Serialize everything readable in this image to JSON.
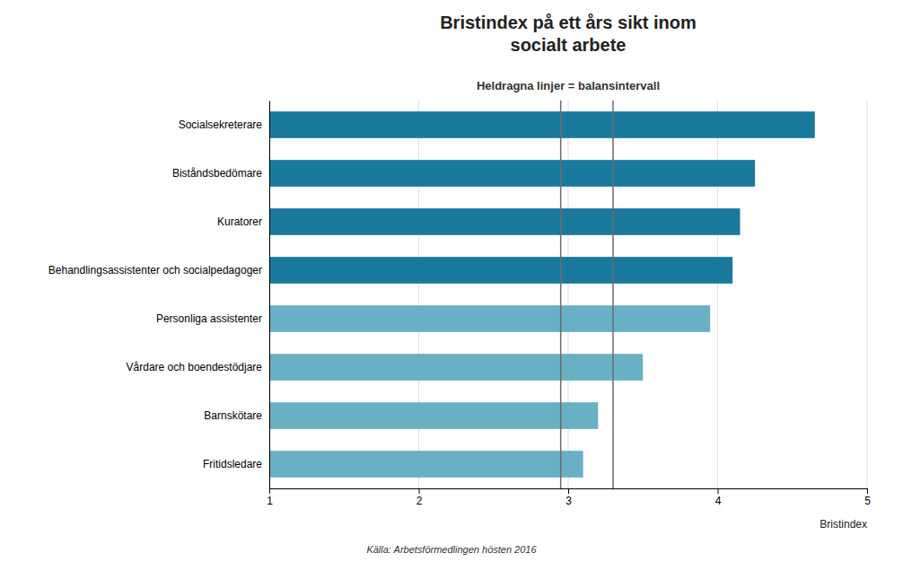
{
  "chart_data": {
    "type": "bar",
    "orientation": "horizontal",
    "title": "Bristindex på ett års sikt inom\nsocialt arbete",
    "subtitle": "Heldragna linjer = balansintervall",
    "xlabel": "Bristindex",
    "annotations": [
      "Källa: Arbetsförmedlingen hösten 2016"
    ],
    "categories": [
      "Fritidsledare",
      "Barnskötare",
      "Vårdare och boendestödjare",
      "Personliga assistenter",
      "Behandlingsassistenter och socialpedagoger",
      "Kuratorer",
      "Biståndsbedömare",
      "Socialsekreterare"
    ],
    "values": [
      3.1,
      3.2,
      3.5,
      3.95,
      4.1,
      4.15,
      4.25,
      4.65
    ],
    "colors": [
      "#6ab0c5",
      "#6ab0c5",
      "#6ab0c5",
      "#6ab0c5",
      "#1a7a9e",
      "#1a7a9e",
      "#1a7a9e",
      "#1a7a9e"
    ],
    "reference_lines": [
      {
        "value": 2.95,
        "color": "#6b6b6b"
      },
      {
        "value": 3.3,
        "color": "#6b6b6b"
      }
    ],
    "xlim": [
      1,
      5
    ],
    "xticks": [
      1,
      2,
      3,
      4,
      5
    ],
    "grid": true
  }
}
